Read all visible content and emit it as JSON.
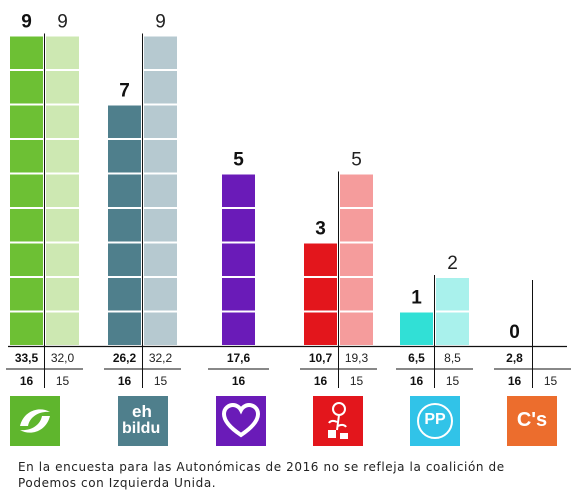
{
  "chart_data": {
    "type": "bar",
    "unit_note": "",
    "year_labels": [
      "16",
      "15"
    ],
    "parties": [
      {
        "id": "pnv",
        "seats_16": 9,
        "seats_15": 9,
        "pct_16": "33,5",
        "pct_15": "32,0",
        "color_16": "#6dc034",
        "color_15": "#cde8b2",
        "logo": "pnv-icon"
      },
      {
        "id": "ehbildu",
        "seats_16": 7,
        "seats_15": 9,
        "pct_16": "26,2",
        "pct_15": "32,2",
        "color_16": "#4f7f8c",
        "color_15": "#b6c9d0",
        "logo": "ehbildu-icon"
      },
      {
        "id": "podemos",
        "seats_16": 5,
        "seats_15": null,
        "pct_16": "17,6",
        "pct_15": null,
        "color_16": "#6a1bb8",
        "color_15": null,
        "logo": "heart-icon"
      },
      {
        "id": "pse",
        "seats_16": 3,
        "seats_15": 5,
        "pct_16": "10,7",
        "pct_15": "19,3",
        "color_16": "#e3161c",
        "color_15": "#f59c9c",
        "logo": "rose-icon"
      },
      {
        "id": "pp",
        "seats_16": 1,
        "seats_15": 2,
        "pct_16": "6,5",
        "pct_15": "8,5",
        "color_16": "#31e0d6",
        "color_15": "#a9f1ec",
        "logo": "pp-icon"
      },
      {
        "id": "cs",
        "seats_16": 0,
        "seats_15": null,
        "pct_16": "2,8",
        "pct_15": null,
        "color_16": "#ec6d2d",
        "color_15": null,
        "logo": "cs-icon"
      }
    ],
    "ylim": [
      0,
      9
    ]
  },
  "logos": {
    "ehbildu_line1": "eh",
    "ehbildu_line2": "bildu",
    "pp_text": "PP",
    "cs_text": "C's"
  },
  "footnote": "En la encuesta para las Autonómicas de 2016 no se refleja la coalición de Podemos con Izquierda Unida."
}
